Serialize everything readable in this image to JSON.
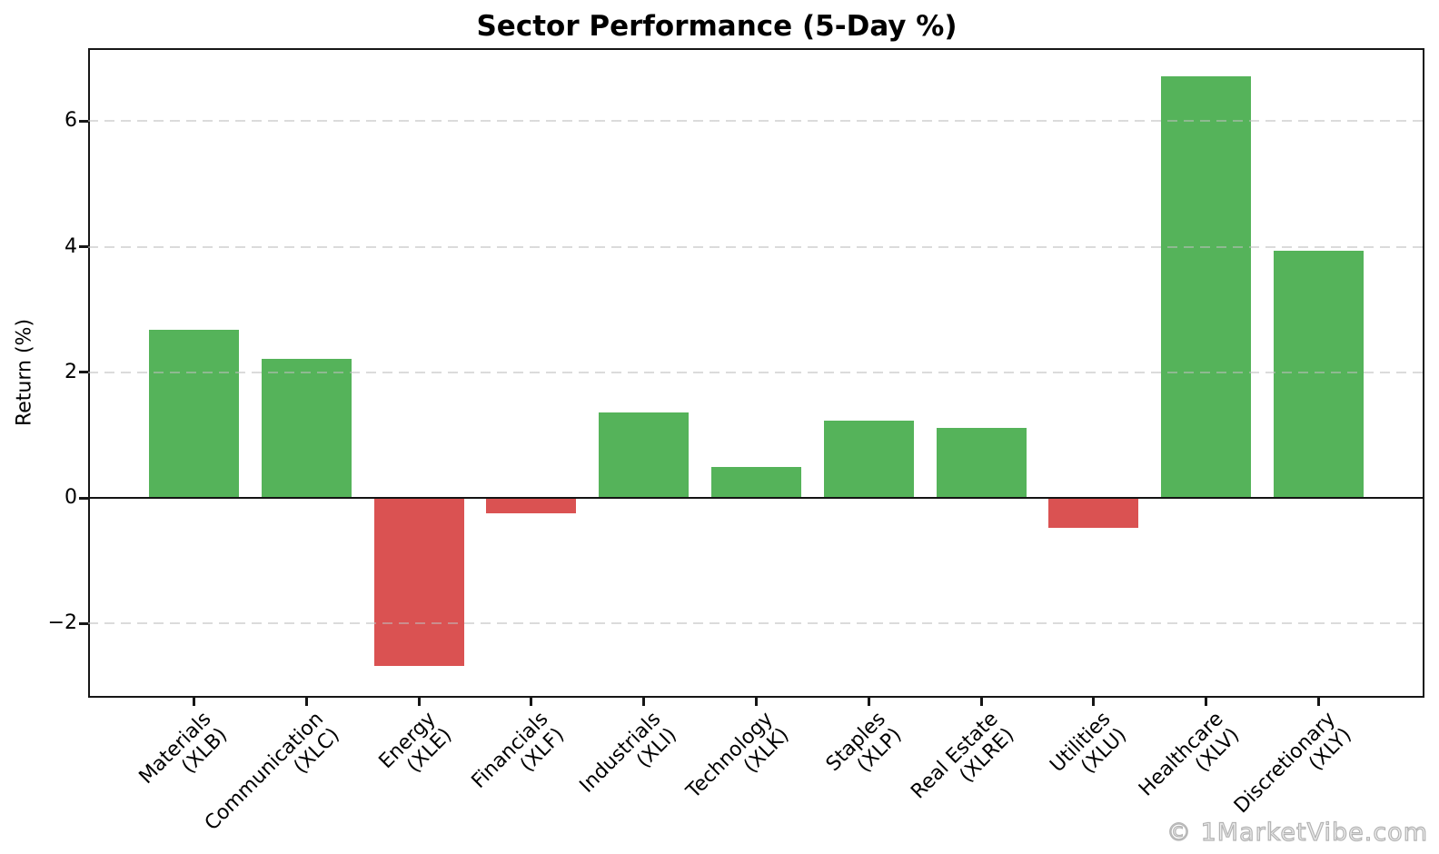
{
  "chart_data": {
    "type": "bar",
    "title": "Sector Performance (5-Day %)",
    "ylabel": "Return (%)",
    "xlabel": "",
    "watermark": "© 1MarketVibe.com",
    "categories": [
      {
        "sector": "Materials",
        "ticker": "(XLB)"
      },
      {
        "sector": "Communication",
        "ticker": "(XLC)"
      },
      {
        "sector": "Energy",
        "ticker": "(XLE)"
      },
      {
        "sector": "Financials",
        "ticker": "(XLF)"
      },
      {
        "sector": "Industrials",
        "ticker": "(XLI)"
      },
      {
        "sector": "Technology",
        "ticker": "(XLK)"
      },
      {
        "sector": "Staples",
        "ticker": "(XLP)"
      },
      {
        "sector": "Real Estate",
        "ticker": "(XLRE)"
      },
      {
        "sector": "Utilities",
        "ticker": "(XLU)"
      },
      {
        "sector": "Healthcare",
        "ticker": "(XLV)"
      },
      {
        "sector": "Discretionary",
        "ticker": "(XLY)"
      }
    ],
    "values": [
      2.67,
      2.22,
      -2.67,
      -0.24,
      1.36,
      0.49,
      1.23,
      1.12,
      -0.47,
      6.71,
      3.94
    ],
    "colors": {
      "positive": "#55b35a",
      "negative": "#da5252"
    },
    "yticks": [
      {
        "value": -2,
        "label": "−2"
      },
      {
        "value": 0,
        "label": "0"
      },
      {
        "value": 2,
        "label": "2"
      },
      {
        "value": 4,
        "label": "4"
      },
      {
        "value": 6,
        "label": "6"
      }
    ],
    "ylim": [
      -3.18,
      7.16
    ],
    "grid": {
      "axis": "y",
      "style": "dashed",
      "color": "#d9d9d9"
    },
    "legend": "none"
  }
}
